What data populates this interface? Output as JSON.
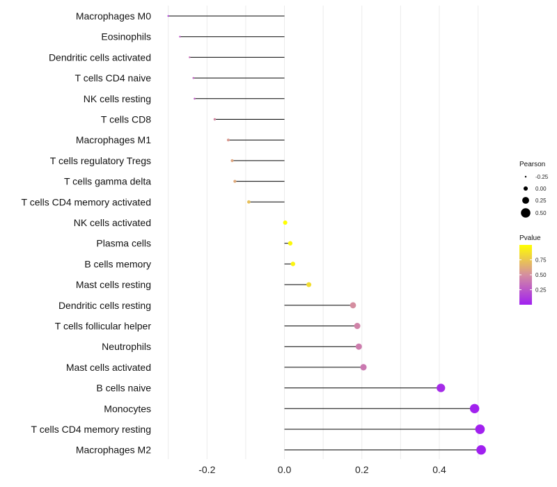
{
  "chart_data": {
    "type": "lollipop",
    "categories": [
      "Macrophages M0",
      "Eosinophils",
      "Dendritic cells activated",
      "T cells CD4 naive",
      "NK cells resting",
      "T cells CD8",
      "Macrophages M1",
      "T cells regulatory  Tregs",
      "T cells gamma delta",
      "T cells CD4 memory activated",
      "NK cells activated",
      "Plasma cells",
      "B cells memory",
      "Mast cells resting",
      "Dendritic cells resting",
      "T cells follicular helper",
      "Neutrophils",
      "Mast cells activated",
      "B cells naive",
      "Monocytes",
      "T cells CD4 memory resting",
      "Macrophages M2"
    ],
    "pearson": [
      -0.3,
      -0.27,
      -0.245,
      -0.235,
      -0.232,
      -0.18,
      -0.145,
      -0.135,
      -0.128,
      -0.092,
      0.002,
      0.015,
      0.022,
      0.063,
      0.177,
      0.188,
      0.192,
      0.204,
      0.404,
      0.491,
      0.505,
      0.508
    ],
    "pvalue": [
      0.15,
      0.25,
      0.35,
      0.3,
      0.28,
      0.48,
      0.55,
      0.6,
      0.62,
      0.72,
      1.0,
      0.97,
      0.95,
      0.85,
      0.5,
      0.45,
      0.42,
      0.4,
      0.05,
      0.01,
      0.005,
      0.002
    ],
    "xlim": [
      -0.33,
      0.56
    ],
    "xticks": [
      -0.2,
      0.0,
      0.2,
      0.4
    ],
    "xtick_labels": [
      "-0.2",
      "0.0",
      "0.2",
      "0.4"
    ],
    "title": "",
    "xlabel": "",
    "ylabel": "",
    "grid": true,
    "legend_size": {
      "title": "Pearson",
      "values": [
        -0.25,
        0.0,
        0.25,
        0.5
      ],
      "labels": [
        "-0.25",
        "0.00",
        "0.25",
        "0.50"
      ]
    },
    "legend_color": {
      "title": "Pvalue",
      "ticks": [
        0.25,
        0.5,
        0.75
      ],
      "labels": [
        "0.25",
        "0.50",
        "0.75"
      ],
      "range": [
        0.0,
        1.0
      ],
      "low_color": "#a020f0",
      "mid_color": "#d58ea0",
      "high_color": "#ffff00"
    }
  }
}
